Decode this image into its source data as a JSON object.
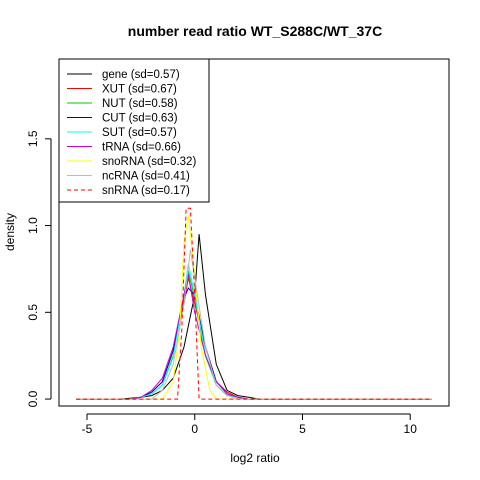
{
  "chart_data": {
    "type": "line",
    "title": "number read ratio WT_S288C/WT_37C",
    "xlabel": "log2 ratio",
    "ylabel": "density",
    "xlim": [
      -6.3,
      11.8
    ],
    "ylim": [
      -0.04,
      1.96
    ],
    "xticks": [
      -5,
      0,
      5,
      10
    ],
    "xtick_labels": [
      "-5",
      "0",
      "5",
      "10"
    ],
    "yticks": [
      0.0,
      0.5,
      1.0,
      1.5
    ],
    "ytick_labels": [
      "0.0",
      "0.5",
      "1.0",
      "1.5"
    ],
    "grid": false,
    "legend_position": "top-left",
    "series": [
      {
        "name": "gene (sd=0.57)",
        "color": "#000000",
        "dash": false,
        "x": [
          -5.5,
          -3.5,
          -2.5,
          -2.0,
          -1.5,
          -1.0,
          -0.5,
          0.0,
          0.2,
          0.5,
          1.0,
          1.5,
          2.0,
          2.5,
          3.0,
          11.0
        ],
        "y": [
          0,
          0,
          0.01,
          0.02,
          0.05,
          0.12,
          0.3,
          0.6,
          0.95,
          0.6,
          0.2,
          0.05,
          0.02,
          0.01,
          0,
          0
        ]
      },
      {
        "name": "XUT (sd=0.67)",
        "color": "#ff0000",
        "dash": false,
        "x": [
          -5.5,
          -3.0,
          -2.5,
          -2.0,
          -1.5,
          -1.0,
          -0.5,
          -0.3,
          0.0,
          0.5,
          1.0,
          1.5,
          2.0,
          2.5,
          11.0
        ],
        "y": [
          0,
          0,
          0.01,
          0.04,
          0.1,
          0.28,
          0.55,
          0.7,
          0.55,
          0.3,
          0.1,
          0.04,
          0.01,
          0,
          0
        ]
      },
      {
        "name": "NUT (sd=0.58)",
        "color": "#00cc00",
        "dash": false,
        "x": [
          -5.5,
          -3.0,
          -2.5,
          -2.0,
          -1.5,
          -1.0,
          -0.5,
          -0.3,
          0.0,
          0.5,
          1.0,
          1.5,
          2.0,
          2.5,
          11.0
        ],
        "y": [
          0,
          0,
          0.01,
          0.03,
          0.08,
          0.25,
          0.6,
          0.74,
          0.58,
          0.25,
          0.08,
          0.02,
          0.01,
          0,
          0
        ]
      },
      {
        "name": "CUT (sd=0.63)",
        "color": "#0000cc",
        "dash": false,
        "x": [
          -5.5,
          -3.0,
          -2.5,
          -2.0,
          -1.5,
          -1.0,
          -0.5,
          -0.3,
          0.0,
          0.5,
          1.0,
          1.5,
          2.0,
          2.5,
          11.0
        ],
        "y": [
          0,
          0,
          0.01,
          0.04,
          0.1,
          0.28,
          0.58,
          0.64,
          0.6,
          0.3,
          0.1,
          0.03,
          0.01,
          0,
          0
        ]
      },
      {
        "name": "SUT (sd=0.57)",
        "color": "#00ffff",
        "dash": false,
        "x": [
          -5.5,
          -3.0,
          -2.5,
          -2.0,
          -1.5,
          -1.0,
          -0.5,
          -0.3,
          0.0,
          0.5,
          1.0,
          1.5,
          2.0,
          2.5,
          11.0
        ],
        "y": [
          0,
          0,
          0.01,
          0.03,
          0.08,
          0.24,
          0.6,
          0.78,
          0.6,
          0.26,
          0.08,
          0.02,
          0.01,
          0,
          0
        ]
      },
      {
        "name": "tRNA (sd=0.66)",
        "color": "#cc00cc",
        "dash": false,
        "x": [
          -5.5,
          -3.0,
          -2.5,
          -2.0,
          -1.5,
          -1.0,
          -0.5,
          -0.3,
          0.0,
          0.5,
          1.0,
          1.5,
          2.0,
          2.5,
          11.0
        ],
        "y": [
          0,
          0,
          0.01,
          0.05,
          0.12,
          0.3,
          0.6,
          0.72,
          0.5,
          0.25,
          0.1,
          0.03,
          0.01,
          0,
          0
        ]
      },
      {
        "name": "snoRNA (sd=0.32)",
        "color": "#ffff00",
        "dash": false,
        "x": [
          -5.5,
          -1.5,
          -1.0,
          -0.7,
          -0.5,
          -0.3,
          0.0,
          0.3,
          0.7,
          1.0,
          11.0
        ],
        "y": [
          0,
          0,
          0.1,
          0.4,
          0.9,
          1.06,
          0.72,
          0.3,
          0.05,
          0,
          0
        ]
      },
      {
        "name": "ncRNA (sd=0.41)",
        "color": "#bbbbbb",
        "dash": false,
        "x": [
          -5.5,
          -2.0,
          -1.5,
          -1.0,
          -0.5,
          -0.2,
          0.0,
          0.5,
          1.0,
          1.5,
          2.0,
          11.0
        ],
        "y": [
          0,
          0,
          0.05,
          0.2,
          0.55,
          0.86,
          0.7,
          0.3,
          0.08,
          0.02,
          0,
          0
        ]
      },
      {
        "name": "snRNA (sd=0.17)",
        "color": "#ff0000",
        "dash": true,
        "x": [
          -5.5,
          -0.8,
          -0.6,
          -0.4,
          -0.2,
          0.0,
          0.2,
          0.4,
          11.0
        ],
        "y": [
          0,
          0,
          0.4,
          1.1,
          1.1,
          0.6,
          0,
          0,
          0
        ]
      }
    ]
  }
}
